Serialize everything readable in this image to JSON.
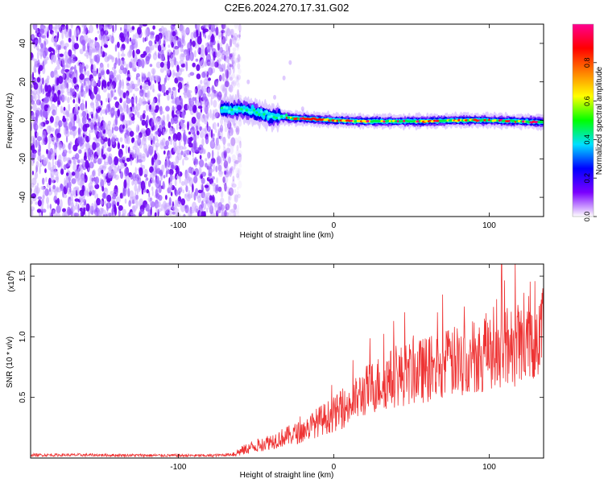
{
  "title": "C2E6.2024.270.17.31.G02",
  "chart_data": [
    {
      "type": "heatmap",
      "xlabel": "Height of straight line (km)",
      "ylabel": "Frequency (Hz)",
      "xlim": [
        -195,
        135
      ],
      "ylim": [
        -50,
        50
      ],
      "xticks": [
        -100,
        0,
        100
      ],
      "xtick_labels": [
        "-100",
        "0",
        "100"
      ],
      "yticks": [
        -40,
        -20,
        0,
        20,
        40
      ],
      "ytick_labels": [
        "-40",
        "-20",
        "0",
        "20",
        "40"
      ],
      "colorbar": {
        "label": "Normalized spectral amplitude",
        "range": [
          0,
          1
        ],
        "ticks": [
          0.0,
          0.2,
          0.4,
          0.6,
          0.8
        ],
        "tick_labels": [
          "0.0",
          "0.2",
          "0.4",
          "0.6",
          "0.8"
        ],
        "colors": [
          "#ffffff",
          "#7b00ff",
          "#0000ff",
          "#00e0ff",
          "#00ff00",
          "#ffff00",
          "#ff8000",
          "#ff0000",
          "#ff0090"
        ]
      },
      "ridge": {
        "x": [
          -72,
          -65,
          -60,
          -55,
          -50,
          -45,
          -40,
          -35,
          -30,
          -25,
          -20,
          -10,
          0,
          20,
          40,
          60,
          80,
          100,
          120,
          135
        ],
        "y": [
          6,
          5,
          6,
          5,
          4,
          3,
          2,
          2,
          1.5,
          1,
          1,
          0.5,
          0,
          -0.5,
          -0.5,
          -0.5,
          0,
          0,
          -0.5,
          -1
        ]
      },
      "noise_region_xlim": [
        -195,
        -65
      ]
    },
    {
      "type": "line",
      "xlabel": "Height of straight line (km)",
      "ylabel": "SNR (10 * v/v)",
      "y_multiplier_label": "(x10",
      "y_multiplier_exponent": "4",
      "y_multiplier_close": ")",
      "xlim": [
        -195,
        135
      ],
      "ylim": [
        0,
        1.6
      ],
      "xticks": [
        -100,
        0,
        100
      ],
      "xtick_labels": [
        "-100",
        "0",
        "100"
      ],
      "yticks": [
        0.5,
        1.0,
        1.5
      ],
      "ytick_labels": [
        "0.5",
        "1.0",
        "1.5"
      ],
      "color": "#ee3333",
      "trend": {
        "x": [
          -195,
          -160,
          -120,
          -80,
          -65,
          -55,
          -40,
          -20,
          -10,
          0,
          10,
          20,
          30,
          40,
          60,
          80,
          100,
          120,
          135
        ],
        "y": [
          0.025,
          0.025,
          0.022,
          0.02,
          0.03,
          0.08,
          0.14,
          0.22,
          0.3,
          0.36,
          0.43,
          0.55,
          0.62,
          0.67,
          0.73,
          0.8,
          0.88,
          0.95,
          1.05
        ]
      }
    }
  ]
}
